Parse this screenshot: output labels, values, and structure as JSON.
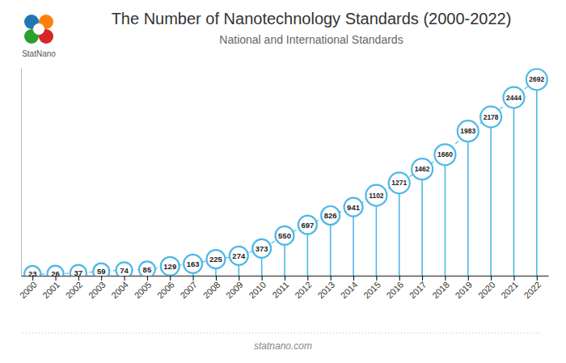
{
  "chart_data": {
    "type": "lollipop",
    "title": "The Number of Nanotechnology Standards (2000-2022)",
    "subtitle": "National and International Standards",
    "annotations": [
      "StatNano",
      "statnano.com"
    ],
    "categories": [
      "2000",
      "2001",
      "2002",
      "2003",
      "2004",
      "2005",
      "2006",
      "2007",
      "2008",
      "2009",
      "2010",
      "2011",
      "2012",
      "2013",
      "2014",
      "2015",
      "2016",
      "2017",
      "2018",
      "2019",
      "2020",
      "2021",
      "2022"
    ],
    "values": [
      23,
      26,
      37,
      59,
      74,
      85,
      129,
      163,
      225,
      274,
      373,
      550,
      697,
      826,
      941,
      1102,
      1271,
      1462,
      1660,
      1983,
      2178,
      2444,
      2692
    ],
    "color": "#4db8e8",
    "ylim": [
      0,
      2850
    ],
    "yticks": [],
    "tick_labels": "x",
    "data_labels": true,
    "marker": "circle",
    "line_style": "dashed",
    "grid": false
  }
}
